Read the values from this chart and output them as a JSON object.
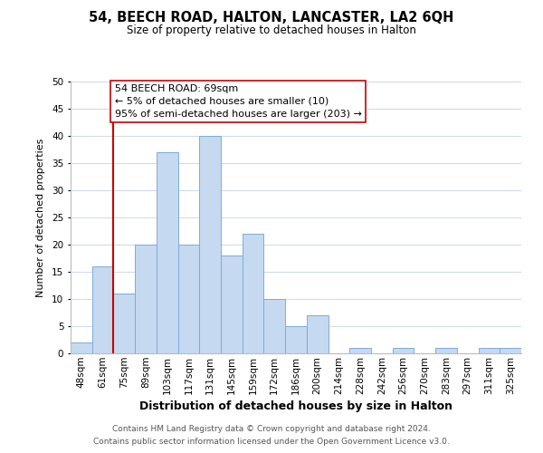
{
  "title": "54, BEECH ROAD, HALTON, LANCASTER, LA2 6QH",
  "subtitle": "Size of property relative to detached houses in Halton",
  "xlabel": "Distribution of detached houses by size in Halton",
  "ylabel": "Number of detached properties",
  "bar_labels": [
    "48sqm",
    "61sqm",
    "75sqm",
    "89sqm",
    "103sqm",
    "117sqm",
    "131sqm",
    "145sqm",
    "159sqm",
    "172sqm",
    "186sqm",
    "200sqm",
    "214sqm",
    "228sqm",
    "242sqm",
    "256sqm",
    "270sqm",
    "283sqm",
    "297sqm",
    "311sqm",
    "325sqm"
  ],
  "bar_values": [
    2,
    16,
    11,
    20,
    37,
    20,
    40,
    18,
    22,
    10,
    5,
    7,
    0,
    1,
    0,
    1,
    0,
    1,
    0,
    1,
    1
  ],
  "bar_color": "#c5d9f1",
  "bar_edge_color": "#7faadb",
  "vline_x": 1.5,
  "vline_color": "#cc0000",
  "ylim": [
    0,
    50
  ],
  "yticks": [
    0,
    5,
    10,
    15,
    20,
    25,
    30,
    35,
    40,
    45,
    50
  ],
  "annotation_title": "54 BEECH ROAD: 69sqm",
  "annotation_line1": "← 5% of detached houses are smaller (10)",
  "annotation_line2": "95% of semi-detached houses are larger (203) →",
  "annotation_box_color": "#ffffff",
  "annotation_border_color": "#cc0000",
  "footer1": "Contains HM Land Registry data © Crown copyright and database right 2024.",
  "footer2": "Contains public sector information licensed under the Open Government Licence v3.0.",
  "background_color": "#ffffff",
  "grid_color": "#d0dce8",
  "title_fontsize": 10.5,
  "subtitle_fontsize": 8.5,
  "xlabel_fontsize": 9,
  "ylabel_fontsize": 8,
  "tick_fontsize": 7.5,
  "footer_fontsize": 6.5,
  "annotation_fontsize": 8.0
}
